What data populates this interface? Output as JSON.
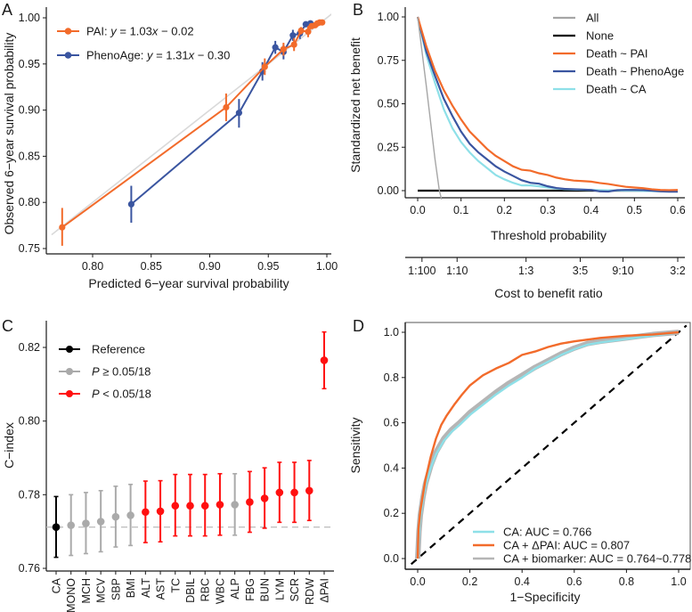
{
  "chart_data": [
    {
      "panel": "A",
      "type": "line",
      "xlabel": "Predicted 6−year survival probability",
      "ylabel": "Observed 6−year survival probability",
      "xlim": [
        0.765,
        1.005
      ],
      "ylim": [
        0.745,
        1.005
      ],
      "xticks": [
        0.8,
        0.85,
        0.9,
        0.95,
        1.0
      ],
      "xtick_labels": [
        "0.80",
        "0.85",
        "0.90",
        "0.95",
        "1.00"
      ],
      "yticks": [
        0.75,
        0.8,
        0.85,
        0.9,
        0.95,
        1.0
      ],
      "ytick_labels": [
        "0.75",
        "0.80",
        "0.85",
        "0.90",
        "0.95",
        "1.00"
      ],
      "reference_line": {
        "from": [
          0.765,
          0.765
        ],
        "to": [
          1.005,
          1.005
        ],
        "color": "#d9d9d9"
      },
      "legend": {
        "placement": "top-left"
      },
      "series": [
        {
          "name": "PAI",
          "legend_prefix": "PAI: ",
          "legend_eq": "y = 1.03x − 0.02",
          "color": "#f26b2b",
          "points": [
            {
              "x": 0.774,
              "y": 0.773,
              "lo": 0.753,
              "hi": 0.794
            },
            {
              "x": 0.914,
              "y": 0.903,
              "lo": 0.888,
              "hi": 0.918
            },
            {
              "x": 0.947,
              "y": 0.947,
              "lo": 0.938,
              "hi": 0.956
            },
            {
              "x": 0.963,
              "y": 0.966,
              "lo": 0.959,
              "hi": 0.973
            },
            {
              "x": 0.972,
              "y": 0.971,
              "lo": 0.964,
              "hi": 0.978
            },
            {
              "x": 0.978,
              "y": 0.986,
              "lo": 0.982,
              "hi": 0.99
            },
            {
              "x": 0.984,
              "y": 0.985,
              "lo": 0.979,
              "hi": 0.991
            },
            {
              "x": 0.987,
              "y": 0.991,
              "lo": 0.988,
              "hi": 0.994
            },
            {
              "x": 0.99,
              "y": 0.992,
              "lo": 0.989,
              "hi": 0.995
            },
            {
              "x": 0.992,
              "y": 0.994,
              "lo": 0.992,
              "hi": 0.996
            },
            {
              "x": 0.994,
              "y": 0.995,
              "lo": 0.993,
              "hi": 0.997
            },
            {
              "x": 0.996,
              "y": 0.995,
              "lo": 0.993,
              "hi": 0.997
            }
          ]
        },
        {
          "name": "PhenoAge",
          "legend_prefix": "PhenoAge: ",
          "legend_eq": "y = 1.31x − 0.30",
          "color": "#3a55a0",
          "points": [
            {
              "x": 0.833,
              "y": 0.798,
              "lo": 0.778,
              "hi": 0.818
            },
            {
              "x": 0.925,
              "y": 0.897,
              "lo": 0.881,
              "hi": 0.912
            },
            {
              "x": 0.945,
              "y": 0.942,
              "lo": 0.932,
              "hi": 0.952
            },
            {
              "x": 0.956,
              "y": 0.968,
              "lo": 0.961,
              "hi": 0.975
            },
            {
              "x": 0.963,
              "y": 0.963,
              "lo": 0.955,
              "hi": 0.971
            },
            {
              "x": 0.971,
              "y": 0.981,
              "lo": 0.975,
              "hi": 0.987
            },
            {
              "x": 0.977,
              "y": 0.983,
              "lo": 0.977,
              "hi": 0.989
            },
            {
              "x": 0.982,
              "y": 0.993,
              "lo": 0.99,
              "hi": 0.996
            },
            {
              "x": 0.986,
              "y": 0.994,
              "lo": 0.992,
              "hi": 0.996
            }
          ]
        }
      ]
    },
    {
      "panel": "B",
      "type": "line",
      "xlabel": "Threshold probability",
      "ylabel": "Standardized net benefit",
      "xlim": [
        -0.02,
        0.62
      ],
      "ylim": [
        -0.05,
        1.0
      ],
      "xticks": [
        0.0,
        0.1,
        0.2,
        0.3,
        0.4,
        0.5,
        0.6
      ],
      "xtick_labels": [
        "0.0",
        "0.1",
        "0.2",
        "0.3",
        "0.4",
        "0.5",
        "0.6"
      ],
      "yticks": [
        0.0,
        0.25,
        0.5,
        0.75,
        1.0
      ],
      "ytick_labels": [
        "0.00",
        "0.25",
        "0.50",
        "0.75",
        "1.00"
      ],
      "secondary_axis": {
        "label": "Cost to benefit ratio",
        "ticks": [
          0.0099,
          0.0909,
          0.25,
          0.375,
          0.4737,
          0.6
        ],
        "tick_labels": [
          "1:100",
          "1:10",
          "1:3",
          "3:5",
          "9:10",
          "3:2"
        ]
      },
      "legend": {
        "placement": "top-right"
      },
      "series": [
        {
          "name": "All",
          "color": "#a6a6a6",
          "x": [
            0.0,
            0.02,
            0.04,
            0.05,
            0.055
          ],
          "y": [
            1.0,
            0.6,
            0.18,
            0.0,
            -0.05
          ]
        },
        {
          "name": "None",
          "color": "#000000",
          "x": [
            0.0,
            0.6
          ],
          "y": [
            0.0,
            0.0
          ]
        },
        {
          "name": "Death ~ PAI",
          "color": "#f26b2b",
          "x": [
            0.0,
            0.02,
            0.04,
            0.06,
            0.08,
            0.1,
            0.12,
            0.14,
            0.16,
            0.18,
            0.2,
            0.22,
            0.24,
            0.26,
            0.28,
            0.3,
            0.32,
            0.34,
            0.36,
            0.38,
            0.4,
            0.42,
            0.44,
            0.46,
            0.48,
            0.5,
            0.52,
            0.54,
            0.56,
            0.58,
            0.6
          ],
          "y": [
            1.0,
            0.83,
            0.69,
            0.58,
            0.49,
            0.41,
            0.34,
            0.29,
            0.24,
            0.2,
            0.17,
            0.14,
            0.12,
            0.115,
            0.1,
            0.09,
            0.075,
            0.065,
            0.058,
            0.055,
            0.052,
            0.044,
            0.038,
            0.03,
            0.022,
            0.018,
            0.014,
            0.008,
            0.004,
            0.003,
            0.004
          ]
        },
        {
          "name": "Death ~ PhenoAge",
          "color": "#3a55a0",
          "x": [
            0.0,
            0.02,
            0.04,
            0.06,
            0.08,
            0.1,
            0.12,
            0.14,
            0.16,
            0.18,
            0.2,
            0.22,
            0.24,
            0.26,
            0.28,
            0.3,
            0.32,
            0.34,
            0.36,
            0.38,
            0.4,
            0.42,
            0.44,
            0.46,
            0.48,
            0.5,
            0.52,
            0.54,
            0.56,
            0.58,
            0.6
          ],
          "y": [
            1.0,
            0.8,
            0.66,
            0.53,
            0.43,
            0.34,
            0.27,
            0.22,
            0.18,
            0.14,
            0.11,
            0.085,
            0.06,
            0.045,
            0.04,
            0.025,
            0.015,
            0.01,
            0.008,
            0.006,
            0.004,
            -0.004,
            -0.005,
            0.003,
            0.004,
            0.004,
            0.003,
            0.0,
            -0.004,
            -0.006,
            -0.006
          ]
        },
        {
          "name": "Death ~ CA",
          "color": "#8ee0e8",
          "x": [
            0.0,
            0.02,
            0.04,
            0.06,
            0.08,
            0.1,
            0.12,
            0.14,
            0.16,
            0.18,
            0.2,
            0.22,
            0.24,
            0.26,
            0.28,
            0.3,
            0.32,
            0.34,
            0.36,
            0.38,
            0.4,
            0.42,
            0.44,
            0.46,
            0.48,
            0.5,
            0.52,
            0.54,
            0.56,
            0.58,
            0.6
          ],
          "y": [
            1.0,
            0.78,
            0.62,
            0.47,
            0.36,
            0.28,
            0.22,
            0.17,
            0.13,
            0.09,
            0.065,
            0.045,
            0.03,
            0.03,
            0.025,
            0.018,
            0.012,
            0.008,
            0.006,
            0.005,
            0.004,
            0.003,
            0.002,
            0.001,
            0.0,
            0.0,
            -0.002,
            -0.003,
            -0.004,
            -0.004,
            -0.004
          ]
        }
      ]
    },
    {
      "panel": "C",
      "type": "scatter",
      "xlabel": "",
      "ylabel": "C−index",
      "ylim": [
        0.76,
        0.826
      ],
      "yticks": [
        0.76,
        0.78,
        0.8,
        0.82
      ],
      "ytick_labels": [
        "0.76",
        "0.78",
        "0.80",
        "0.82"
      ],
      "reference_hline": {
        "y": 0.7712,
        "style": "dashed",
        "color": "#c0c0c0"
      },
      "legend": {
        "placement": "top-left",
        "entries": [
          {
            "key": "ref",
            "label_pre": "",
            "label_it": "",
            "label": "Reference",
            "color": "#000000"
          },
          {
            "key": "ns",
            "label_it": "P",
            "label": " ≥ 0.05/18",
            "color": "#aaaaaa"
          },
          {
            "key": "sig",
            "label_it": "P",
            "label": " < 0.05/18",
            "color": "#ff1010"
          }
        ]
      },
      "categories": [
        "CA",
        "MONO",
        "MCH",
        "MCV",
        "SBP",
        "BMI",
        "ALT",
        "AST",
        "TC",
        "DBIL",
        "RBC",
        "WBC",
        "ALP",
        "FBG",
        "BUN",
        "LYM",
        "SCR",
        "RDW",
        "ΔPAI"
      ],
      "values": [
        0.7712,
        0.7717,
        0.7722,
        0.7727,
        0.774,
        0.7744,
        0.7753,
        0.7755,
        0.777,
        0.777,
        0.777,
        0.7773,
        0.7773,
        0.778,
        0.779,
        0.7806,
        0.7806,
        0.7811,
        0.8165
      ],
      "lower": [
        0.763,
        0.7635,
        0.764,
        0.7645,
        0.7658,
        0.7662,
        0.767,
        0.7672,
        0.7688,
        0.7688,
        0.7688,
        0.769,
        0.769,
        0.7698,
        0.7709,
        0.7725,
        0.7725,
        0.773,
        0.8088
      ],
      "upper": [
        0.7795,
        0.78,
        0.7806,
        0.7811,
        0.7823,
        0.7828,
        0.7837,
        0.7838,
        0.7855,
        0.7855,
        0.7855,
        0.7857,
        0.7857,
        0.7863,
        0.7873,
        0.7888,
        0.7888,
        0.7893,
        0.8242
      ],
      "group": [
        "ref",
        "ns",
        "ns",
        "ns",
        "ns",
        "ns",
        "sig",
        "sig",
        "sig",
        "sig",
        "sig",
        "sig",
        "ns",
        "sig",
        "sig",
        "sig",
        "sig",
        "sig",
        "sig"
      ]
    },
    {
      "panel": "D",
      "type": "line",
      "xlabel": "1−Specificity",
      "ylabel": "Sensitivity",
      "xlim": [
        -0.03,
        1.03
      ],
      "ylim": [
        -0.04,
        1.04
      ],
      "xticks": [
        0.0,
        0.2,
        0.4,
        0.6,
        0.8,
        1.0
      ],
      "xtick_labels": [
        "0.0",
        "0.2",
        "0.4",
        "0.6",
        "0.8",
        "1.0"
      ],
      "yticks": [
        0.0,
        0.2,
        0.4,
        0.6,
        0.8,
        1.0
      ],
      "ytick_labels": [
        "0.0",
        "0.2",
        "0.4",
        "0.6",
        "0.8",
        "1.0"
      ],
      "diagonal": {
        "style": "dashed",
        "color": "#000000"
      },
      "legend": {
        "placement": "bottom-right"
      },
      "series": [
        {
          "name": "CA + biomarker",
          "label": "CA + biomarker: AUC = 0.764~0.778",
          "auc_range": [
            0.764,
            0.778
          ],
          "color": "#b5b5b5",
          "band": true,
          "x": [
            0.0,
            0.005,
            0.01,
            0.02,
            0.03,
            0.05,
            0.07,
            0.1,
            0.13,
            0.16,
            0.2,
            0.25,
            0.3,
            0.35,
            0.4,
            0.45,
            0.5,
            0.55,
            0.6,
            0.65,
            0.7,
            0.8,
            0.9,
            1.0
          ],
          "y": [
            0.0,
            0.12,
            0.19,
            0.27,
            0.33,
            0.41,
            0.47,
            0.53,
            0.57,
            0.6,
            0.645,
            0.69,
            0.735,
            0.775,
            0.81,
            0.845,
            0.875,
            0.905,
            0.93,
            0.95,
            0.96,
            0.975,
            0.99,
            1.0
          ]
        },
        {
          "name": "CA",
          "label": "CA: AUC = 0.766",
          "auc": 0.766,
          "color": "#8ee0e8",
          "x": [
            0.0,
            0.005,
            0.01,
            0.02,
            0.03,
            0.05,
            0.07,
            0.1,
            0.13,
            0.16,
            0.2,
            0.25,
            0.3,
            0.35,
            0.4,
            0.45,
            0.5,
            0.55,
            0.6,
            0.65,
            0.7,
            0.8,
            0.9,
            1.0
          ],
          "y": [
            0.0,
            0.11,
            0.18,
            0.26,
            0.32,
            0.4,
            0.46,
            0.52,
            0.56,
            0.59,
            0.635,
            0.68,
            0.725,
            0.765,
            0.8,
            0.84,
            0.87,
            0.9,
            0.925,
            0.945,
            0.955,
            0.97,
            0.985,
            1.0
          ]
        },
        {
          "name": "CA + ΔPAI",
          "label": "CA + ΔPAI: AUC = 0.807",
          "auc": 0.807,
          "color": "#f26b2b",
          "x": [
            0.0,
            0.003,
            0.01,
            0.02,
            0.03,
            0.05,
            0.07,
            0.09,
            0.11,
            0.14,
            0.17,
            0.2,
            0.25,
            0.3,
            0.35,
            0.4,
            0.45,
            0.5,
            0.55,
            0.6,
            0.7,
            0.8,
            0.9,
            1.0
          ],
          "y": [
            0.0,
            0.13,
            0.21,
            0.28,
            0.35,
            0.45,
            0.53,
            0.59,
            0.63,
            0.68,
            0.725,
            0.765,
            0.81,
            0.84,
            0.865,
            0.9,
            0.915,
            0.935,
            0.95,
            0.96,
            0.975,
            0.985,
            0.99,
            1.0
          ]
        }
      ]
    }
  ],
  "panels": {
    "A": {
      "letter": "A"
    },
    "B": {
      "letter": "B"
    },
    "C": {
      "letter": "C"
    },
    "D": {
      "letter": "D"
    }
  }
}
